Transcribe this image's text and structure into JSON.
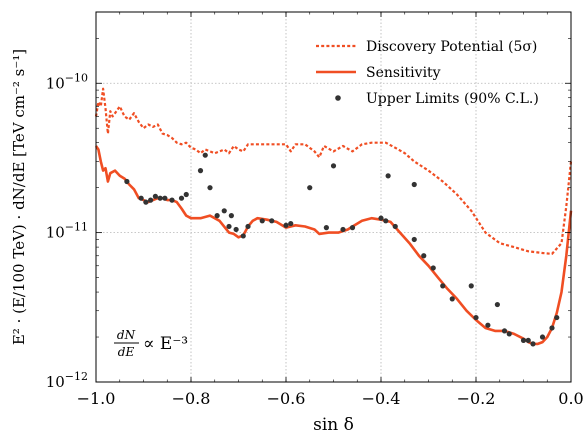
{
  "chart_data": {
    "type": "line",
    "xlabel": "sin δ",
    "ylabel": "E² · (E/100 TeV) · dN/dE [TeV cm⁻² s⁻¹]",
    "annotation": {
      "main": "∝ E⁻³",
      "frac_num": "dN",
      "frac_den": "dE"
    },
    "xlim": [
      -1.0,
      0.0
    ],
    "ylim": [
      1e-12,
      3e-10
    ],
    "yscale": "log",
    "grid": true,
    "legend_position": "top-right",
    "x_ticks": [
      {
        "value": -1.0,
        "label": "−1.0"
      },
      {
        "value": -0.8,
        "label": "−0.8"
      },
      {
        "value": -0.6,
        "label": "−0.6"
      },
      {
        "value": -0.4,
        "label": "−0.4"
      },
      {
        "value": -0.2,
        "label": "−0.2"
      },
      {
        "value": 0.0,
        "label": "0.0"
      }
    ],
    "y_ticks": [
      {
        "value": 1e-12,
        "base": "10",
        "exp": "−12"
      },
      {
        "value": 1e-11,
        "base": "10",
        "exp": "−11"
      },
      {
        "value": 1e-10,
        "base": "10",
        "exp": "−10"
      }
    ],
    "series": [
      {
        "name": "Discovery Potential (5σ)",
        "style": "dotted",
        "color": "#f04e23",
        "points": [
          [
            -1.0,
            6e-11
          ],
          [
            -0.995,
            7.5e-11
          ],
          [
            -0.99,
            7e-11
          ],
          [
            -0.985,
            9.2e-11
          ],
          [
            -0.98,
            6.8e-11
          ],
          [
            -0.975,
            4.6e-11
          ],
          [
            -0.97,
            6.5e-11
          ],
          [
            -0.965,
            6e-11
          ],
          [
            -0.96,
            6.3e-11
          ],
          [
            -0.95,
            7e-11
          ],
          [
            -0.94,
            6e-11
          ],
          [
            -0.93,
            5.7e-11
          ],
          [
            -0.92,
            6.3e-11
          ],
          [
            -0.91,
            5.5e-11
          ],
          [
            -0.9,
            5e-11
          ],
          [
            -0.89,
            5.3e-11
          ],
          [
            -0.88,
            5.1e-11
          ],
          [
            -0.87,
            5.3e-11
          ],
          [
            -0.86,
            4.6e-11
          ],
          [
            -0.85,
            4.5e-11
          ],
          [
            -0.84,
            4.3e-11
          ],
          [
            -0.83,
            4e-11
          ],
          [
            -0.82,
            3.9e-11
          ],
          [
            -0.81,
            4e-11
          ],
          [
            -0.8,
            3.7e-11
          ],
          [
            -0.79,
            3.6e-11
          ],
          [
            -0.78,
            3.4e-11
          ],
          [
            -0.77,
            3.6e-11
          ],
          [
            -0.76,
            3.5e-11
          ],
          [
            -0.75,
            3.4e-11
          ],
          [
            -0.74,
            3.5e-11
          ],
          [
            -0.73,
            3.6e-11
          ],
          [
            -0.72,
            3.4e-11
          ],
          [
            -0.71,
            3.8e-11
          ],
          [
            -0.7,
            3.6e-11
          ],
          [
            -0.69,
            3.5e-11
          ],
          [
            -0.68,
            3.9e-11
          ],
          [
            -0.66,
            3.9e-11
          ],
          [
            -0.64,
            3.9e-11
          ],
          [
            -0.62,
            3.9e-11
          ],
          [
            -0.6,
            3.9e-11
          ],
          [
            -0.59,
            3.5e-11
          ],
          [
            -0.58,
            3.9e-11
          ],
          [
            -0.56,
            3.9e-11
          ],
          [
            -0.54,
            3.5e-11
          ],
          [
            -0.53,
            3.2e-11
          ],
          [
            -0.52,
            3.8e-11
          ],
          [
            -0.5,
            3.5e-11
          ],
          [
            -0.48,
            3.8e-11
          ],
          [
            -0.46,
            3.5e-11
          ],
          [
            -0.44,
            3.9e-11
          ],
          [
            -0.42,
            4e-11
          ],
          [
            -0.4,
            4e-11
          ],
          [
            -0.39,
            4e-11
          ],
          [
            -0.37,
            3.7e-11
          ],
          [
            -0.35,
            3.4e-11
          ],
          [
            -0.33,
            3e-11
          ],
          [
            -0.3,
            2.6e-11
          ],
          [
            -0.27,
            2.2e-11
          ],
          [
            -0.24,
            1.8e-11
          ],
          [
            -0.21,
            1.4e-11
          ],
          [
            -0.18,
            1e-11
          ],
          [
            -0.15,
            8.5e-12
          ],
          [
            -0.12,
            8e-12
          ],
          [
            -0.09,
            7.5e-12
          ],
          [
            -0.06,
            7.3e-12
          ],
          [
            -0.04,
            7.2e-12
          ],
          [
            -0.02,
            8.5e-12
          ],
          [
            -0.01,
            1.5e-11
          ],
          [
            0.0,
            3e-11
          ]
        ]
      },
      {
        "name": "Sensitivity",
        "style": "solid",
        "color": "#f04e23",
        "points": [
          [
            -1.0,
            3.8e-11
          ],
          [
            -0.995,
            3.6e-11
          ],
          [
            -0.99,
            3e-11
          ],
          [
            -0.985,
            2.6e-11
          ],
          [
            -0.98,
            2.7e-11
          ],
          [
            -0.975,
            2.2e-11
          ],
          [
            -0.97,
            2.5e-11
          ],
          [
            -0.96,
            2.6e-11
          ],
          [
            -0.95,
            2.4e-11
          ],
          [
            -0.94,
            2.3e-11
          ],
          [
            -0.93,
            2.1e-11
          ],
          [
            -0.92,
            1.95e-11
          ],
          [
            -0.91,
            1.7e-11
          ],
          [
            -0.9,
            1.65e-11
          ],
          [
            -0.89,
            1.6e-11
          ],
          [
            -0.88,
            1.65e-11
          ],
          [
            -0.87,
            1.7e-11
          ],
          [
            -0.86,
            1.7e-11
          ],
          [
            -0.85,
            1.65e-11
          ],
          [
            -0.84,
            1.65e-11
          ],
          [
            -0.83,
            1.6e-11
          ],
          [
            -0.82,
            1.45e-11
          ],
          [
            -0.81,
            1.3e-11
          ],
          [
            -0.8,
            1.25e-11
          ],
          [
            -0.78,
            1.25e-11
          ],
          [
            -0.76,
            1.3e-11
          ],
          [
            -0.74,
            1.2e-11
          ],
          [
            -0.72,
            1e-11
          ],
          [
            -0.71,
            9.8e-12
          ],
          [
            -0.7,
            9.3e-12
          ],
          [
            -0.69,
            9.6e-12
          ],
          [
            -0.68,
            1.1e-11
          ],
          [
            -0.67,
            1.2e-11
          ],
          [
            -0.66,
            1.25e-11
          ],
          [
            -0.64,
            1.22e-11
          ],
          [
            -0.62,
            1.18e-11
          ],
          [
            -0.6,
            1.08e-11
          ],
          [
            -0.58,
            1.12e-11
          ],
          [
            -0.56,
            1.1e-11
          ],
          [
            -0.54,
            1.05e-11
          ],
          [
            -0.53,
            9.8e-12
          ],
          [
            -0.51,
            1e-11
          ],
          [
            -0.49,
            1e-11
          ],
          [
            -0.47,
            1.05e-11
          ],
          [
            -0.46,
            1.1e-11
          ],
          [
            -0.44,
            1.2e-11
          ],
          [
            -0.42,
            1.25e-11
          ],
          [
            -0.4,
            1.22e-11
          ],
          [
            -0.38,
            1.18e-11
          ],
          [
            -0.36,
            1e-11
          ],
          [
            -0.34,
            8.5e-12
          ],
          [
            -0.32,
            7e-12
          ],
          [
            -0.3,
            6e-12
          ],
          [
            -0.28,
            5e-12
          ],
          [
            -0.26,
            4.2e-12
          ],
          [
            -0.24,
            3.6e-12
          ],
          [
            -0.22,
            3e-12
          ],
          [
            -0.2,
            2.6e-12
          ],
          [
            -0.18,
            2.3e-12
          ],
          [
            -0.16,
            2.2e-12
          ],
          [
            -0.14,
            2.2e-12
          ],
          [
            -0.12,
            2.1e-12
          ],
          [
            -0.1,
            1.95e-12
          ],
          [
            -0.09,
            1.85e-12
          ],
          [
            -0.08,
            1.8e-12
          ],
          [
            -0.07,
            1.8e-12
          ],
          [
            -0.06,
            1.85e-12
          ],
          [
            -0.05,
            2e-12
          ],
          [
            -0.04,
            2.3e-12
          ],
          [
            -0.03,
            2.9e-12
          ],
          [
            -0.02,
            4e-12
          ],
          [
            -0.01,
            7e-12
          ],
          [
            0.0,
            1.4e-11
          ]
        ]
      },
      {
        "name": "Upper Limits (90% C.L.)",
        "style": "markers",
        "color": "#333333",
        "points": [
          [
            -0.935,
            2.2e-11
          ],
          [
            -0.905,
            1.7e-11
          ],
          [
            -0.895,
            1.6e-11
          ],
          [
            -0.885,
            1.65e-11
          ],
          [
            -0.875,
            1.75e-11
          ],
          [
            -0.865,
            1.7e-11
          ],
          [
            -0.855,
            1.7e-11
          ],
          [
            -0.84,
            1.65e-11
          ],
          [
            -0.82,
            1.7e-11
          ],
          [
            -0.81,
            1.8e-11
          ],
          [
            -0.78,
            2.6e-11
          ],
          [
            -0.77,
            3.3e-11
          ],
          [
            -0.76,
            2e-11
          ],
          [
            -0.745,
            1.3e-11
          ],
          [
            -0.73,
            1.4e-11
          ],
          [
            -0.72,
            1.1e-11
          ],
          [
            -0.715,
            1.3e-11
          ],
          [
            -0.705,
            1.05e-11
          ],
          [
            -0.69,
            9.5e-12
          ],
          [
            -0.68,
            1.1e-11
          ],
          [
            -0.65,
            1.2e-11
          ],
          [
            -0.63,
            1.2e-11
          ],
          [
            -0.6,
            1.12e-11
          ],
          [
            -0.59,
            1.15e-11
          ],
          [
            -0.55,
            2e-11
          ],
          [
            -0.515,
            1.08e-11
          ],
          [
            -0.5,
            2.8e-11
          ],
          [
            -0.48,
            1.05e-11
          ],
          [
            -0.46,
            1.08e-11
          ],
          [
            -0.4,
            1.25e-11
          ],
          [
            -0.39,
            1.2e-11
          ],
          [
            -0.385,
            2.4e-11
          ],
          [
            -0.37,
            1.1e-11
          ],
          [
            -0.33,
            2.1e-11
          ],
          [
            -0.33,
            9e-12
          ],
          [
            -0.31,
            7e-12
          ],
          [
            -0.29,
            5.8e-12
          ],
          [
            -0.27,
            4.4e-12
          ],
          [
            -0.25,
            3.6e-12
          ],
          [
            -0.21,
            4.4e-12
          ],
          [
            -0.2,
            2.7e-12
          ],
          [
            -0.175,
            2.4e-12
          ],
          [
            -0.155,
            3.3e-12
          ],
          [
            -0.14,
            2.2e-12
          ],
          [
            -0.13,
            2.1e-12
          ],
          [
            -0.1,
            1.9e-12
          ],
          [
            -0.09,
            1.9e-12
          ],
          [
            -0.08,
            1.8e-12
          ],
          [
            -0.06,
            2e-12
          ],
          [
            -0.04,
            2.3e-12
          ],
          [
            -0.03,
            2.7e-12
          ]
        ]
      }
    ]
  }
}
